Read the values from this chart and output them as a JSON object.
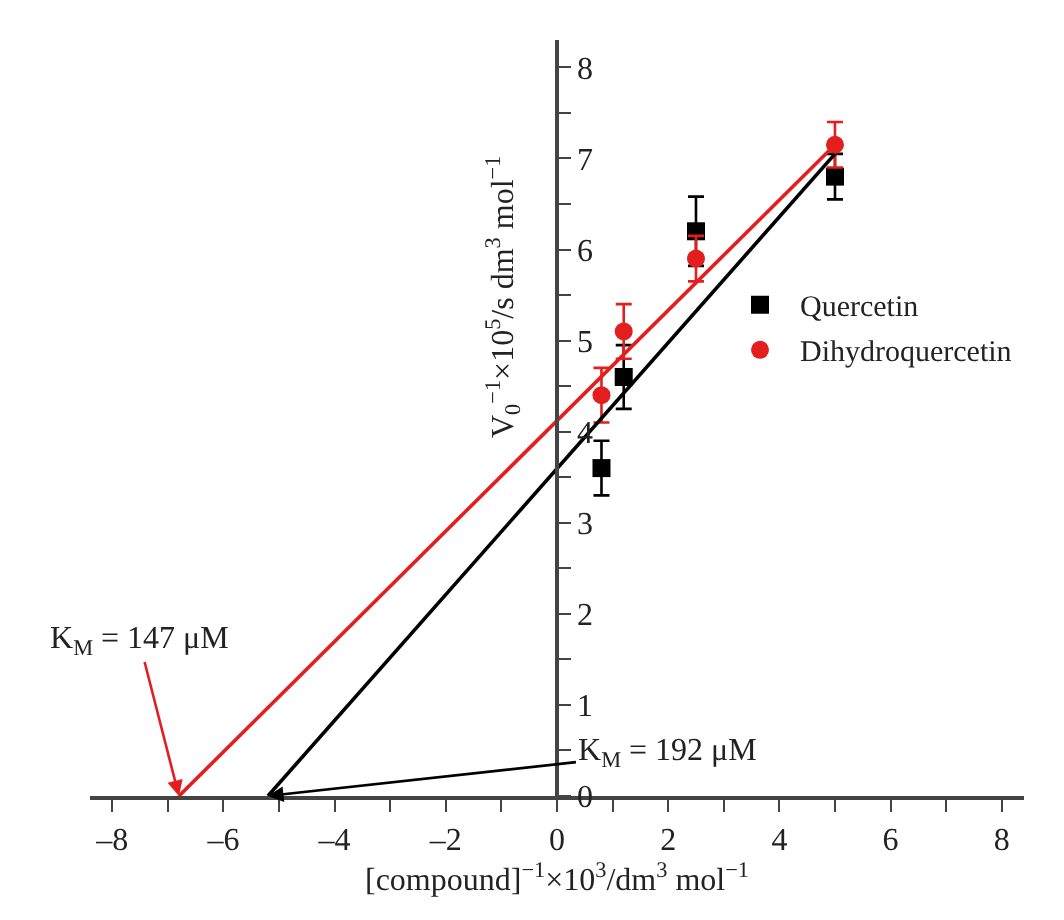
{
  "chart_data": {
    "type": "scatter",
    "xlabel": "[compound]$^{−1}$×10$^{3}$/dm$^{3}$ mol$^{−1}$",
    "ylabel": "V$_{0}$$^{−1}$×10$^{5}$/s dm$^{3}$ mol$^{−1}$",
    "series": [
      {
        "name": "Quercetin",
        "color": "#000000",
        "marker": "square",
        "x": [
          0.8,
          1.2,
          2.5,
          5
        ],
        "values": [
          3.6,
          4.6,
          6.2,
          6.8
        ],
        "errors": [
          0.3,
          0.35,
          0.38,
          0.25
        ]
      },
      {
        "name": "Dihydroquercetin",
        "color": "#e41e1e",
        "marker": "circle",
        "x": [
          0.8,
          1.2,
          2.5,
          5
        ],
        "values": [
          4.4,
          5.1,
          5.9,
          7.15
        ],
        "errors": [
          0.3,
          0.3,
          0.25,
          0.25
        ]
      },
      {
        "type": "line",
        "color": "#000000",
        "x": [
          -5.2,
          5
        ],
        "values": [
          0,
          7.05
        ]
      },
      {
        "type": "line",
        "color": "#e41e1e",
        "x": [
          -6.8,
          5
        ],
        "values": [
          0,
          7.15
        ]
      }
    ],
    "annotations": [
      {
        "text": "K$_{M}$ = 147 μM",
        "x": -6.8,
        "y": 0
      },
      {
        "text": "K$_{M}$ = 192 μM",
        "x": -5.2,
        "y": 0
      }
    ],
    "xlim": [
      -8.4,
      8.4
    ],
    "xticks": [
      {
        "value": -8,
        "label": "–8"
      },
      {
        "value": -7,
        "label": null
      },
      {
        "value": -6,
        "label": "–6"
      },
      {
        "value": -5,
        "label": null
      },
      {
        "value": -4,
        "label": "–4"
      },
      {
        "value": -3,
        "label": null
      },
      {
        "value": -2,
        "label": "–2"
      },
      {
        "value": -1,
        "label": null
      },
      0,
      {
        "value": 1,
        "label": null
      },
      2,
      {
        "value": 3,
        "label": null
      },
      4,
      {
        "value": 5,
        "label": null
      },
      6,
      {
        "value": 7,
        "label": null
      },
      8
    ],
    "ylim": [
      0,
      8.3
    ],
    "yticks": [
      0,
      {
        "value": 0.5,
        "label": null
      },
      1,
      {
        "value": 1.5,
        "label": null
      },
      2,
      {
        "value": 2.5,
        "label": null
      },
      3,
      {
        "value": 3.5,
        "label": null
      },
      4,
      {
        "value": 4.5,
        "label": null
      },
      5,
      {
        "value": 5.5,
        "label": null
      },
      6,
      {
        "value": 6.5,
        "label": null
      },
      7,
      {
        "value": 7.5,
        "label": null
      },
      8
    ],
    "legend": "right"
  }
}
